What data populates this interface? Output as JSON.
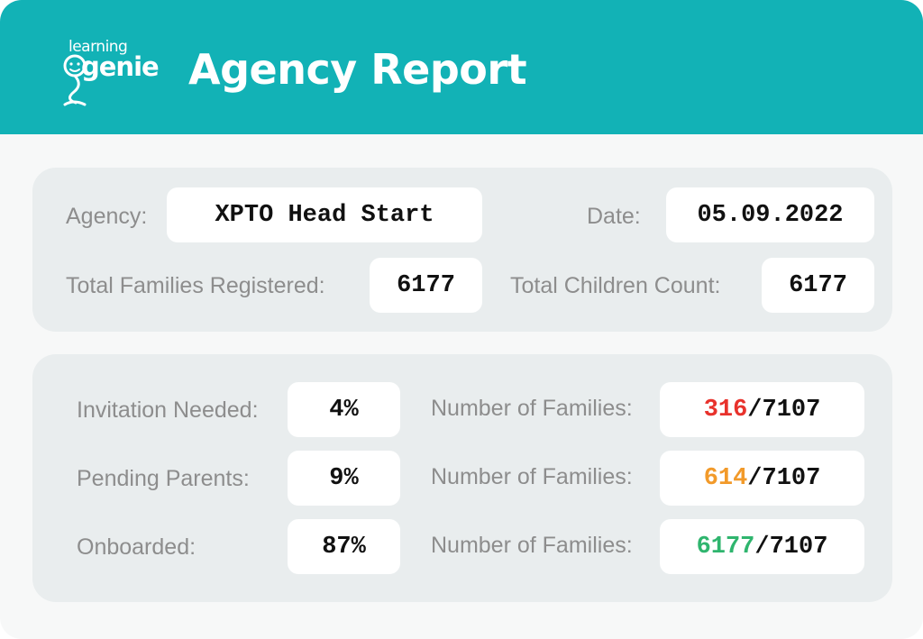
{
  "brand": {
    "logo_text_top": "learning",
    "logo_text_bottom": "genie"
  },
  "header": {
    "title": "Agency Report",
    "color": "#12b2b6"
  },
  "info": {
    "agency_label": "Agency:",
    "agency_value": "XPTO Head Start",
    "date_label": "Date:",
    "date_value": "05.09.2022",
    "families_label": "Total Families Registered:",
    "families_value": "6177",
    "children_label": "Total Children Count:",
    "children_value": "6177"
  },
  "stats": [
    {
      "label": "Invitation Needed:",
      "percent": "4%",
      "families_label": "Number of Families:",
      "count": "316",
      "total": "/7107",
      "color": "#e8322c"
    },
    {
      "label": "Pending Parents:",
      "percent": "9%",
      "families_label": "Number of Families:",
      "count": "614",
      "total": "/7107",
      "color": "#f29a2a"
    },
    {
      "label": "Onboarded:",
      "percent": "87%",
      "families_label": "Number of Families:",
      "count": "6177",
      "total": "/7107",
      "color": "#2fb56e"
    }
  ]
}
